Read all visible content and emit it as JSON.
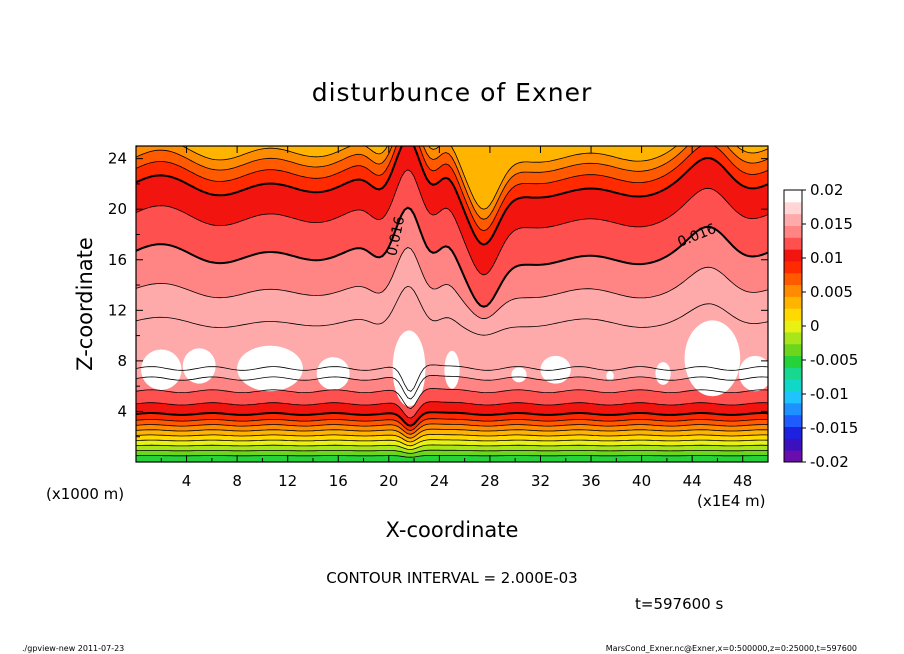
{
  "chart_data": {
    "type": "contour",
    "title": "disturbunce of Exner",
    "xlabel": "X-coordinate",
    "ylabel": "Z-coordinate",
    "x_unit_left": "(x1000 m)",
    "x_unit_right": "(x1E4 m)",
    "xlim": [
      0,
      50
    ],
    "ylim": [
      0,
      25
    ],
    "x_ticks": [
      4,
      8,
      12,
      16,
      20,
      24,
      28,
      32,
      36,
      40,
      44,
      48
    ],
    "y_ticks": [
      4,
      8,
      12,
      16,
      20,
      24
    ],
    "contour_interval_text": "CONTOUR INTERVAL = 2.000E-03",
    "time_text": "t=597600 s",
    "contour_labels": [
      {
        "text": "0.016",
        "x": 20.9,
        "z": 17.8
      },
      {
        "text": "0.016",
        "x": 44.5,
        "z": 17.6
      }
    ],
    "colorbar": {
      "labels": [
        "0.02",
        "0.015",
        "0.01",
        "0.005",
        "0",
        "-0.005",
        "-0.01",
        "-0.015",
        "-0.02"
      ],
      "range": [
        -0.02,
        0.02
      ],
      "colors": [
        "#6a0dad",
        "#3c0fbf",
        "#1d22e0",
        "#1f5cff",
        "#1e90ff",
        "#1fc4ff",
        "#10d8c8",
        "#18d890",
        "#25d23a",
        "#6cd61c",
        "#a8e51a",
        "#e8f014",
        "#ffd900",
        "#ffb400",
        "#ff8c00",
        "#ff5a00",
        "#ff2a00",
        "#f2140f",
        "#ff5050",
        "#ff8484",
        "#ffaaaa",
        "#ffd5d5",
        "#ffffff"
      ]
    },
    "bands_bottom_to_top": [
      {
        "z_top": 0.5,
        "color": "#25d23a"
      },
      {
        "z_top": 0.9,
        "color": "#6cd61c"
      },
      {
        "z_top": 1.3,
        "color": "#a8e51a"
      },
      {
        "z_top": 1.7,
        "color": "#e8f014"
      },
      {
        "z_top": 2.1,
        "color": "#ffd900"
      },
      {
        "z_top": 2.5,
        "color": "#ffb400"
      },
      {
        "z_top": 2.9,
        "color": "#ff8c00"
      },
      {
        "z_top": 3.3,
        "color": "#ff5a00"
      },
      {
        "z_top": 3.8,
        "color": "#ff2a00"
      },
      {
        "z_top": 4.6,
        "color": "#f2140f"
      },
      {
        "z_top": 5.6,
        "color": "#ff5050"
      },
      {
        "z_top": 6.6,
        "color": "#ff8484"
      },
      {
        "z_top": 7.4,
        "color": "#ffaaaa"
      }
    ],
    "upper_layers": [
      {
        "z_base": 11.0,
        "color": "#ffaaaa"
      },
      {
        "z_base": 13.5,
        "color": "#ff8484"
      },
      {
        "z_base": 16.4,
        "color": "#ff5050"
      },
      {
        "z_base": 19.4,
        "color": "#f2140f"
      },
      {
        "z_base": 21.8,
        "color": "#ff2a00"
      },
      {
        "z_base": 22.9,
        "color": "#ff5a00"
      },
      {
        "z_base": 23.8,
        "color": "#ff8c00"
      },
      {
        "z_base": 24.6,
        "color": "#ffb400"
      }
    ],
    "white_regions": [
      {
        "x": 2.0,
        "z": 7.3,
        "rx": 1.6,
        "rz": 1.6
      },
      {
        "x": 5.0,
        "z": 7.6,
        "rx": 1.3,
        "rz": 1.4
      },
      {
        "x": 10.6,
        "z": 7.4,
        "rx": 2.6,
        "rz": 1.8
      },
      {
        "x": 15.6,
        "z": 7.0,
        "rx": 1.3,
        "rz": 1.3
      },
      {
        "x": 21.6,
        "z": 7.4,
        "rx": 1.3,
        "rz": 3.0
      },
      {
        "x": 25.0,
        "z": 7.3,
        "rx": 0.6,
        "rz": 1.5
      },
      {
        "x": 30.3,
        "z": 6.9,
        "rx": 0.6,
        "rz": 0.6
      },
      {
        "x": 33.2,
        "z": 7.3,
        "rx": 1.2,
        "rz": 1.1
      },
      {
        "x": 37.5,
        "z": 6.8,
        "rx": 0.3,
        "rz": 0.4
      },
      {
        "x": 41.7,
        "z": 7.0,
        "rx": 0.6,
        "rz": 0.9
      },
      {
        "x": 45.6,
        "z": 8.2,
        "rx": 2.2,
        "rz": 3.0
      },
      {
        "x": 49.0,
        "z": 7.0,
        "rx": 1.3,
        "rz": 1.4
      }
    ],
    "footer_left": "./gpview-new  2011-07-23",
    "footer_right": "MarsCond_Exner.nc@Exner,x=0:500000,z=0:25000,t=597600"
  }
}
